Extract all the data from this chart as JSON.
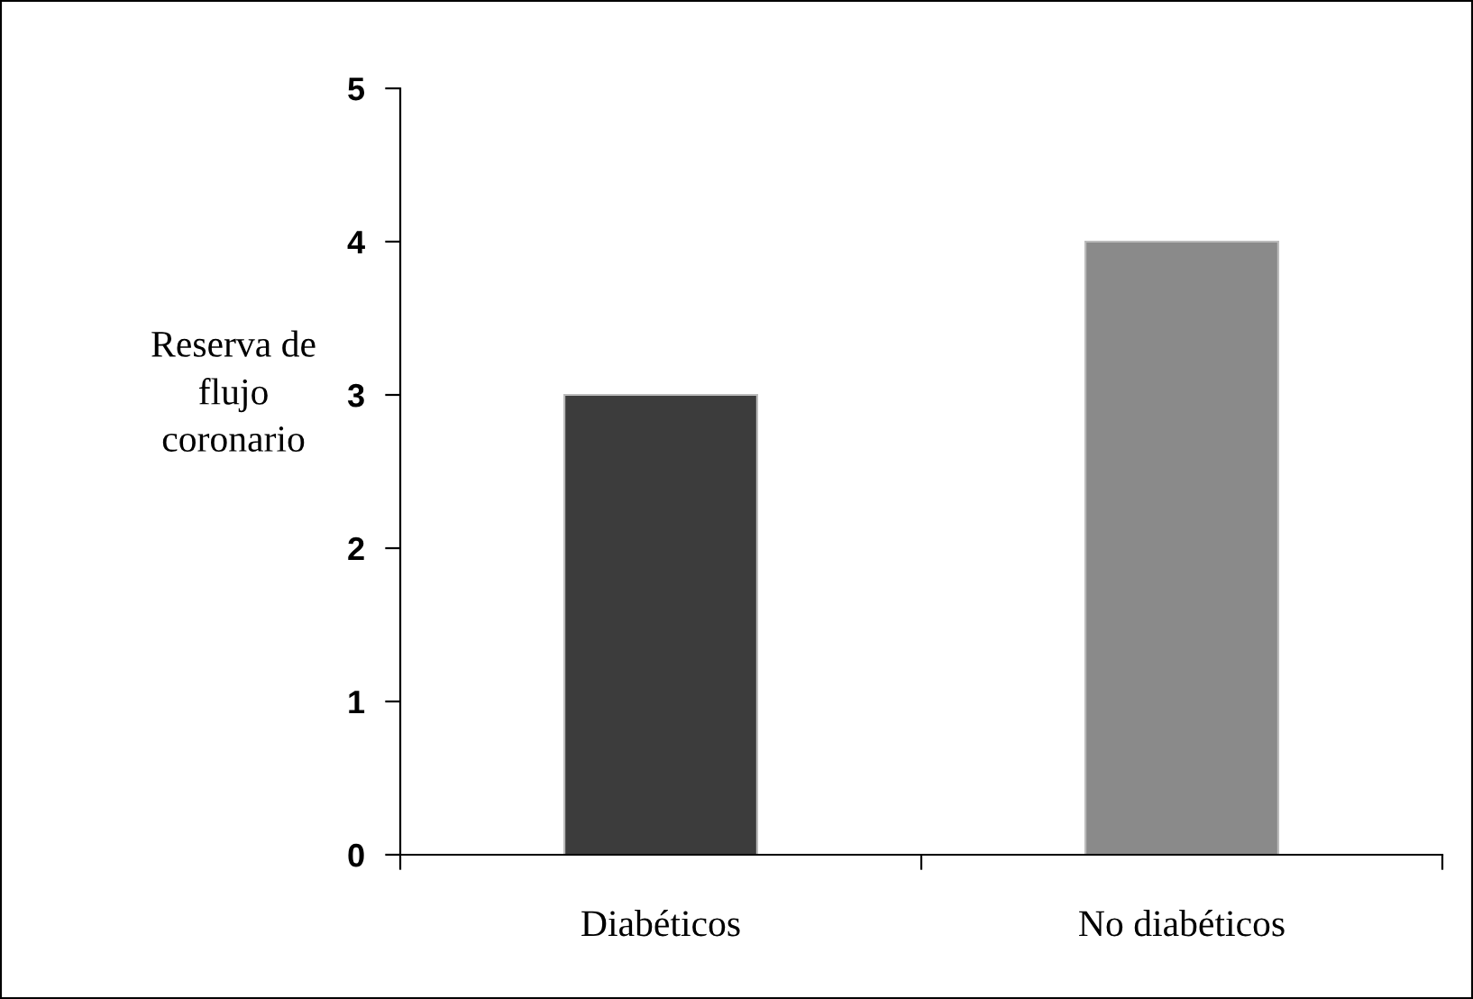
{
  "chart_data": {
    "type": "bar",
    "ylabel": "Reserva de\nflujo\ncoronario",
    "categories": [
      "Diabéticos",
      "No diabéticos"
    ],
    "values": [
      3,
      4
    ],
    "colors": [
      "#3c3c3c",
      "#8a8a8a"
    ],
    "ylim": [
      0,
      5
    ],
    "yticks": [
      0,
      1,
      2,
      3,
      4,
      5
    ],
    "grid": false,
    "legend": false
  }
}
